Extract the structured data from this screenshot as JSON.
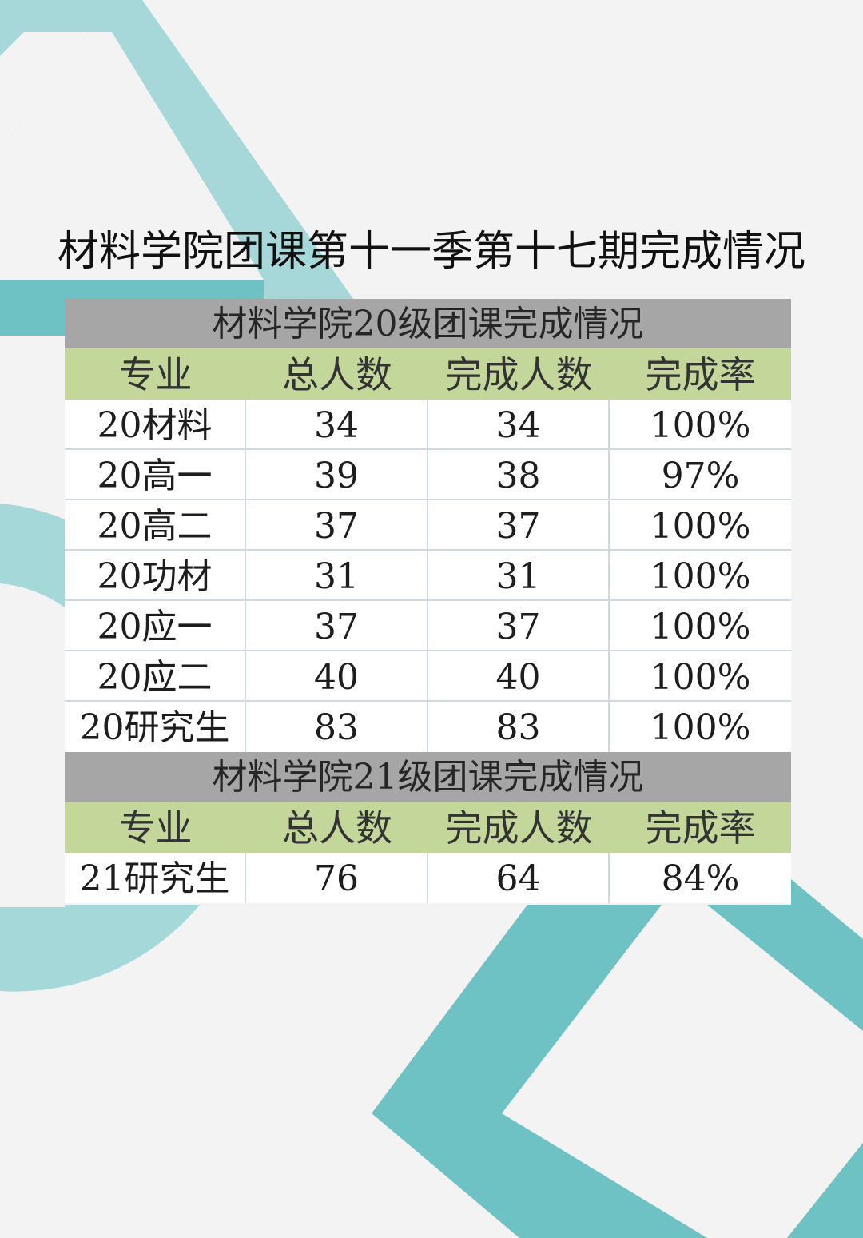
{
  "title": "材料学院团课第十一季第十七期完成情况",
  "colors": {
    "background": "#f3f3f3",
    "teal": "#6ec2c4",
    "light_teal": "#a5d9d9",
    "section_gray": "#a6a6a6",
    "header_green": "#c4d79b"
  },
  "sections": [
    {
      "heading": "材料学院20级团课完成情况",
      "columns": [
        "专业",
        "总人数",
        "完成人数",
        "完成率"
      ],
      "rows": [
        [
          "20材料",
          "34",
          "34",
          "100%"
        ],
        [
          "20高一",
          "39",
          "38",
          "97%"
        ],
        [
          "20高二",
          "37",
          "37",
          "100%"
        ],
        [
          "20功材",
          "31",
          "31",
          "100%"
        ],
        [
          "20应一",
          "37",
          "37",
          "100%"
        ],
        [
          "20应二",
          "40",
          "40",
          "100%"
        ],
        [
          "20研究生",
          "83",
          "83",
          "100%"
        ]
      ]
    },
    {
      "heading": "材料学院21级团课完成情况",
      "columns": [
        "专业",
        "总人数",
        "完成人数",
        "完成率"
      ],
      "rows": [
        [
          "21研究生",
          "76",
          "64",
          "84%"
        ]
      ]
    }
  ]
}
